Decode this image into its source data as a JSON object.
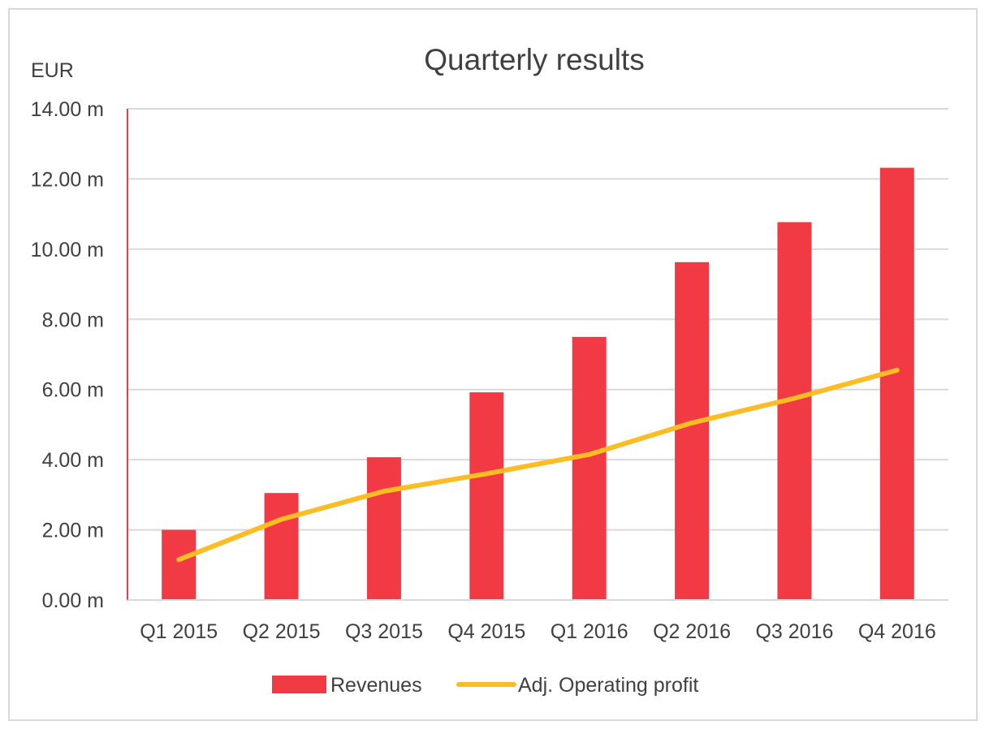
{
  "chart_data": {
    "type": "bar",
    "title": "Quarterly results",
    "ylabel": "EUR",
    "xlabel": "",
    "categories": [
      "Q1 2015",
      "Q2 2015",
      "Q3 2015",
      "Q4 2015",
      "Q1 2016",
      "Q2 2016",
      "Q3 2016",
      "Q4 2016"
    ],
    "ylim": [
      0,
      14
    ],
    "yticks": [
      0,
      2,
      4,
      6,
      8,
      10,
      12,
      14
    ],
    "ytick_labels": [
      "0.00 m",
      "2.00 m",
      "4.00 m",
      "6.00 m",
      "8.00 m",
      "10.00 m",
      "12.00 m",
      "14.00 m"
    ],
    "grid": true,
    "legend_position": "bottom",
    "series": [
      {
        "name": "Revenues",
        "type": "bar",
        "color": "#f23a45",
        "values": [
          2.0,
          3.05,
          4.07,
          5.92,
          7.5,
          9.63,
          10.77,
          12.32
        ]
      },
      {
        "name": "Adj. Operating profit",
        "type": "line",
        "color": "#fbbd23",
        "values": [
          1.15,
          2.3,
          3.1,
          3.6,
          4.15,
          5.05,
          5.75,
          6.55
        ]
      }
    ]
  }
}
